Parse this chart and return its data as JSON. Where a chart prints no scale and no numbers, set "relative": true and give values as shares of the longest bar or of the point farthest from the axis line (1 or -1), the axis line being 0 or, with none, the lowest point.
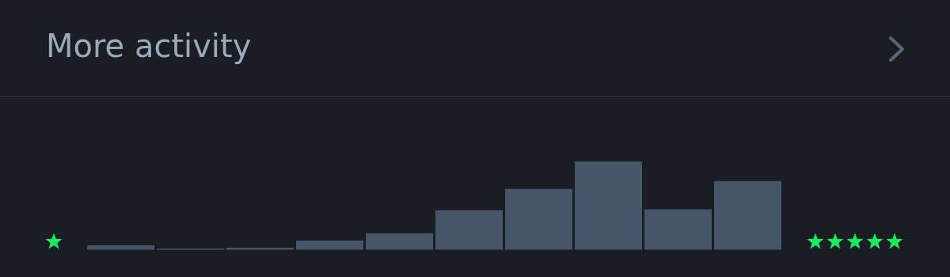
{
  "chart_data": {
    "type": "bar",
    "title": "More activity",
    "categories": [
      null,
      null,
      null,
      null,
      null,
      null,
      null,
      null,
      null,
      null
    ],
    "values": [
      0.054,
      0.018,
      0.027,
      0.107,
      0.19,
      0.45,
      0.69,
      1,
      0.46,
      0.78
    ],
    "color": "#465567",
    "relative": true
  }
}
